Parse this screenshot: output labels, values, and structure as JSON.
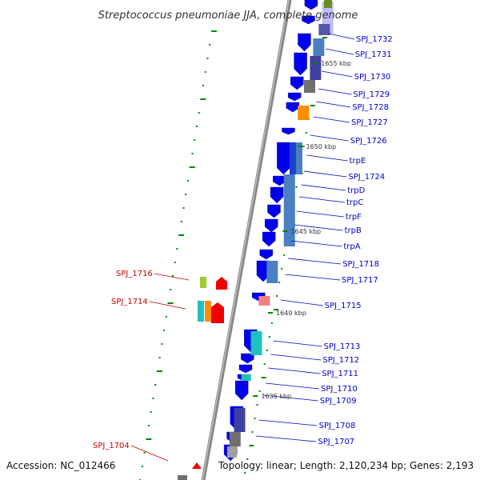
{
  "title": "Streptococcus pneumoniae JJA, complete genome",
  "footer": {
    "accession": "Accession: NC_012466",
    "summary": "Topology: linear; Length: 2,120,234 bp; Genes: 2,193"
  },
  "colors": {
    "forward_label": "#0000cc",
    "reverse_label": "#cc0000",
    "tick": "#008800",
    "backbone": "#888888"
  },
  "kbp_marks": [
    {
      "text": "1655 kbp",
      "kb": 1655
    },
    {
      "text": "1650 kbp",
      "kb": 1650
    },
    {
      "text": "1645 kbp",
      "kb": 1645
    },
    {
      "text": "1640 kbp",
      "kb": 1640
    },
    {
      "text": "1635 kbp",
      "kb": 1635
    }
  ],
  "forward_labels": [
    "SPJ_1732",
    "SPJ_1731",
    "SPJ_1730",
    "SPJ_1729",
    "SPJ_1728",
    "SPJ_1727",
    "SPJ_1726",
    "trpE",
    "SPJ_1724",
    "trpD",
    "trpC",
    "trpF",
    "trpB",
    "trpA",
    "SPJ_1718",
    "SPJ_1717",
    "SPJ_1715",
    "SPJ_1713",
    "SPJ_1712",
    "SPJ_1711",
    "SPJ_1710",
    "SPJ_1709",
    "SPJ_1708",
    "SPJ_1707"
  ],
  "reverse_labels": [
    "SPJ_1716",
    "SPJ_1714",
    "SPJ_1704"
  ]
}
